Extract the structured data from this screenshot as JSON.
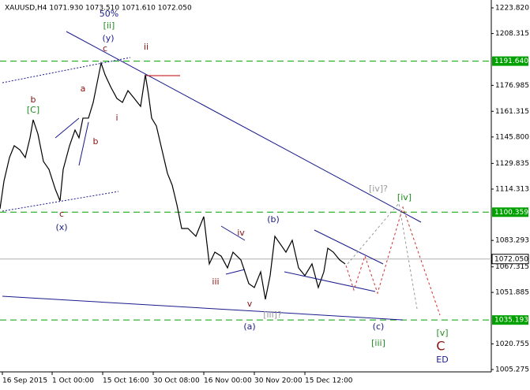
{
  "chart_data": {
    "type": "line",
    "title": "XAUUSD,H4  1071.930 1073.510 1071.610 1072.050",
    "x": [
      0,
      5,
      12,
      18,
      25,
      32,
      38,
      42,
      48,
      55,
      62,
      70,
      76,
      80,
      88,
      95,
      100,
      105,
      112,
      118,
      124,
      128,
      133,
      140,
      148,
      155,
      162,
      170,
      178,
      184,
      188,
      192,
      198,
      205,
      212,
      218,
      224,
      230,
      238,
      248,
      258,
      265,
      272,
      280,
      288,
      295,
      305,
      315,
      322,
      330,
      336,
      342,
      348,
      355,
      362,
      370,
      378,
      386,
      395,
      403,
      410,
      415,
      422,
      430,
      437
    ],
    "series": [
      {
        "name": "XAUUSD,H4",
        "color": "#000000",
        "values": [
          1102.4,
          1119.1,
          1133.4,
          1140.5,
          1138.1,
          1133.4,
          1145.3,
          1156.2,
          1147.6,
          1131.0,
          1126.2,
          1114.3,
          1107.2,
          1126.2,
          1140.5,
          1150.0,
          1145.3,
          1157.2,
          1157.2,
          1166.7,
          1181.0,
          1190.5,
          1183.4,
          1176.2,
          1169.1,
          1166.7,
          1173.8,
          1169.1,
          1164.3,
          1183.4,
          1171.5,
          1157.2,
          1152.4,
          1138.1,
          1123.8,
          1116.7,
          1104.8,
          1090.5,
          1090.5,
          1085.8,
          1097.7,
          1069.1,
          1076.2,
          1073.8,
          1066.7,
          1076.2,
          1071.5,
          1057.2,
          1054.8,
          1064.3,
          1047.7,
          1062.0,
          1085.8,
          1081.0,
          1076.2,
          1083.4,
          1066.7,
          1062.0,
          1069.1,
          1054.8,
          1064.3,
          1078.6,
          1076.2,
          1071.5,
          1069.1
        ]
      }
    ],
    "xlim": [
      0,
      622
    ],
    "xticks": [
      {
        "value": 3,
        "label": "16 Sep 2015"
      },
      {
        "value": 66,
        "label": "1 Oct 00:00"
      },
      {
        "value": 130,
        "label": "15 Oct 16:00"
      },
      {
        "value": 194,
        "label": "30 Oct 08:00"
      },
      {
        "value": 258,
        "label": "16 Nov 00:00"
      },
      {
        "value": 322,
        "label": "30 Nov 20:00"
      },
      {
        "value": 386,
        "label": "15 Dec 12:00"
      }
    ],
    "ylim": [
      1003.85,
      1228.58
    ],
    "yticks": [
      {
        "value": 1223.82,
        "label": "1223.820"
      },
      {
        "value": 1208.315,
        "label": "1208.315"
      },
      {
        "value": 1176.985,
        "label": "1176.985"
      },
      {
        "value": 1161.315,
        "label": "1161.315"
      },
      {
        "value": 1145.8,
        "label": "1145.800"
      },
      {
        "value": 1129.835,
        "label": "1129.835"
      },
      {
        "value": 1114.313,
        "label": "1114.313"
      },
      {
        "value": 1083.293,
        "label": "1083.293"
      },
      {
        "value": 1067.315,
        "label": "1067.315"
      },
      {
        "value": 1051.885,
        "label": "1051.885"
      },
      {
        "value": 1020.755,
        "label": "1020.755"
      },
      {
        "value": 1005.275,
        "label": "1005.275"
      }
    ],
    "levels": [
      {
        "value": 1191.64,
        "label": "1191.640"
      },
      {
        "value": 1100.359,
        "label": "1100.359"
      },
      {
        "value": 1035.193,
        "label": "1035.193"
      }
    ],
    "level_color": "#00a000",
    "current_price": {
      "value": 1072.05,
      "label": "1072.050"
    },
    "annotations": [
      {
        "text": "50%",
        "color": "#1a1a8c"
      },
      {
        "text": "[ii]",
        "color": "#1e8c1e"
      },
      {
        "text": "(y)",
        "color": "#1a1a8c"
      },
      {
        "text": "c",
        "color": "#8b1010"
      },
      {
        "text": "ii",
        "color": "#8b1010"
      },
      {
        "text": "a",
        "color": "#8b1010"
      },
      {
        "text": "b",
        "color": "#8b1010"
      },
      {
        "text": "[C]",
        "color": "#1e8c1e"
      },
      {
        "text": "i",
        "color": "#8b1010"
      },
      {
        "text": "b",
        "color": "#8b1010"
      },
      {
        "text": "c",
        "color": "#8b1010"
      },
      {
        "text": "(x)",
        "color": "#1a1a8c"
      },
      {
        "text": "iv",
        "color": "#8b1010"
      },
      {
        "text": "(b)",
        "color": "#1a1a8c"
      },
      {
        "text": "iii",
        "color": "#8b1010"
      },
      {
        "text": "v",
        "color": "#8b1010"
      },
      {
        "text": "[iii]?",
        "color": "#999999"
      },
      {
        "text": "(a)",
        "color": "#1a1a8c"
      },
      {
        "text": "[iv]?",
        "color": "#999999"
      },
      {
        "text": "[iv]",
        "color": "#1e8c1e"
      },
      {
        "text": "(c)",
        "color": "#1a1a8c"
      },
      {
        "text": "[iii]",
        "color": "#1e8c1e"
      },
      {
        "text": "[v]",
        "color": "#1e8c1e"
      },
      {
        "text": "C",
        "color": "#8b1010"
      },
      {
        "text": "ED",
        "color": "#1a1a8c"
      }
    ]
  }
}
